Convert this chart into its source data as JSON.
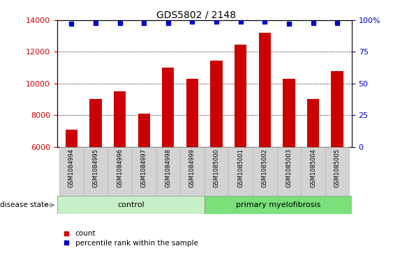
{
  "title": "GDS5802 / 2148",
  "samples": [
    "GSM1084994",
    "GSM1084995",
    "GSM1084996",
    "GSM1084997",
    "GSM1084998",
    "GSM1084999",
    "GSM1085000",
    "GSM1085001",
    "GSM1085002",
    "GSM1085003",
    "GSM1085004",
    "GSM1085005"
  ],
  "counts": [
    7100,
    9000,
    9500,
    8100,
    11000,
    10300,
    11450,
    12450,
    13200,
    10300,
    9000,
    10800
  ],
  "percentile_ranks": [
    97,
    98,
    98,
    98,
    98,
    99,
    99,
    99,
    99,
    97,
    98,
    98
  ],
  "bar_color": "#cc0000",
  "dot_color": "#0000cc",
  "ylim_left": [
    6000,
    14000
  ],
  "ylim_right": [
    0,
    100
  ],
  "yticks_left": [
    6000,
    8000,
    10000,
    12000,
    14000
  ],
  "yticks_right": [
    0,
    25,
    50,
    75,
    100
  ],
  "control_label": "control",
  "disease_label": "primary myelofibrosis",
  "control_count": 6,
  "disease_count": 6,
  "disease_state_label": "disease state",
  "legend_count_label": "count",
  "legend_pct_label": "percentile rank within the sample",
  "tick_fontsize": 8,
  "title_fontsize": 10,
  "label_fontsize": 8.5
}
